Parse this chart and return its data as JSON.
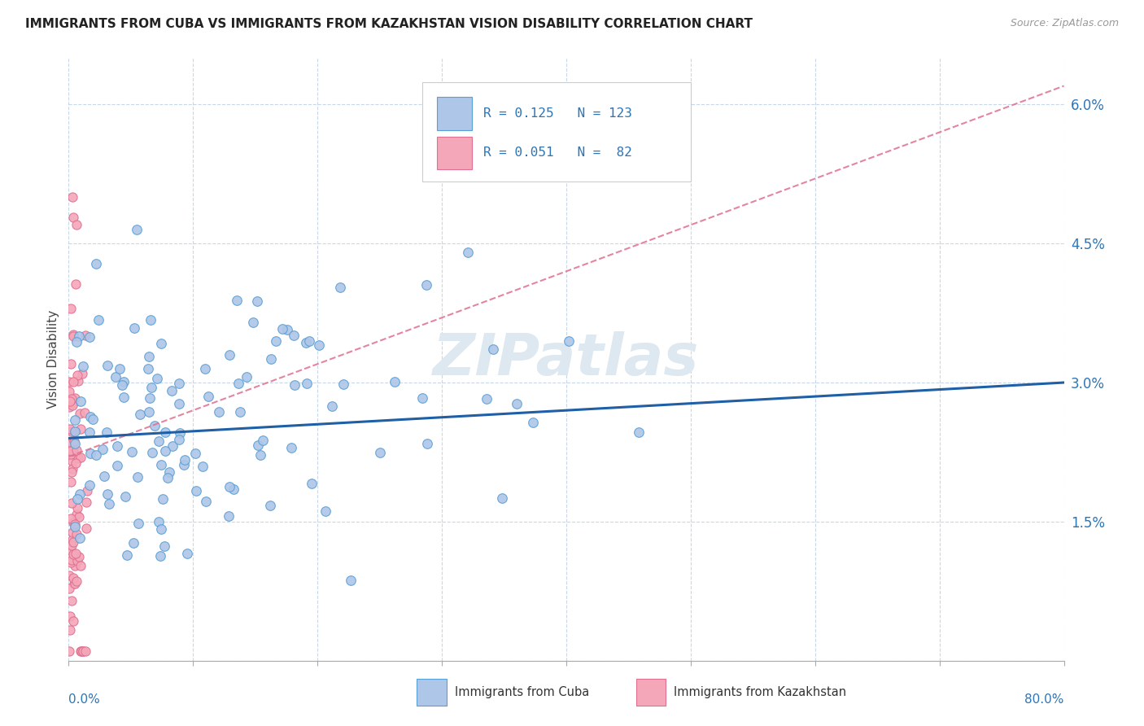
{
  "title": "IMMIGRANTS FROM CUBA VS IMMIGRANTS FROM KAZAKHSTAN VISION DISABILITY CORRELATION CHART",
  "source": "Source: ZipAtlas.com",
  "ylabel": "Vision Disability",
  "yticks": [
    0.0,
    0.015,
    0.03,
    0.045,
    0.06
  ],
  "ytick_labels": [
    "",
    "1.5%",
    "3.0%",
    "4.5%",
    "6.0%"
  ],
  "xlim": [
    0.0,
    0.8
  ],
  "ylim": [
    0.0,
    0.065
  ],
  "cuba_R": 0.125,
  "cuba_N": 123,
  "kaz_R": 0.051,
  "kaz_N": 82,
  "cuba_color": "#aec6e8",
  "cuba_edge": "#5a9fd4",
  "kaz_color": "#f4a7b9",
  "kaz_edge": "#e07090",
  "trend_cuba_color": "#1f5fa6",
  "trend_kaz_color": "#e07090",
  "background": "#ffffff",
  "grid_color": "#c8d8e8",
  "watermark": "ZIPatlas"
}
